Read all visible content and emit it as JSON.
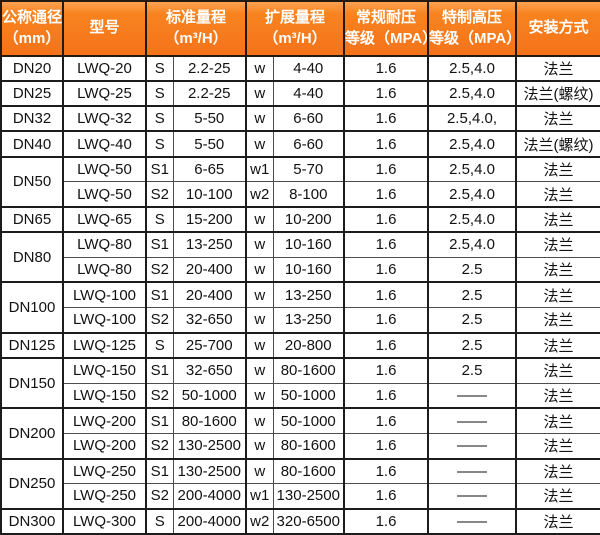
{
  "colors": {
    "header_background": "#F5731A",
    "header_background_top": "#FBA253",
    "header_text": "#FFFFFF",
    "border_thick": "#1C1C1C",
    "border_thin": "#4D4D4D",
    "body_text": "#121212",
    "body_background": "#FFFFFF"
  },
  "table": {
    "header": {
      "diameter_l1": "公称通径",
      "diameter_l2": "（mm）",
      "model": "型号",
      "standard_l1": "标准量程",
      "standard_l2": "（m³/H）",
      "extended_l1": "扩展量程",
      "extended_l2": "（m³/H）",
      "normal_pressure_l1": "常规耐压",
      "normal_pressure_l2": "等级（MPA）",
      "high_pressure_l1": "特制高压",
      "high_pressure_l2": "等级（MPA）",
      "installation": "安装方式"
    },
    "rows": [
      {
        "group_start": true,
        "rowspan": 1,
        "dn": "DN20",
        "model": "LWQ-20",
        "s": "S",
        "std": "2.2-25",
        "w": "w",
        "ext": "4-40",
        "normal": "1.6",
        "high": "2.5,4.0",
        "install": "法兰"
      },
      {
        "group_start": true,
        "rowspan": 1,
        "dn": "DN25",
        "model": "LWQ-25",
        "s": "S",
        "std": "2.2-25",
        "w": "w",
        "ext": "4-40",
        "normal": "1.6",
        "high": "2.5,4.0",
        "install": "法兰(螺纹)"
      },
      {
        "group_start": true,
        "rowspan": 1,
        "dn": "DN32",
        "model": "LWQ-32",
        "s": "S",
        "std": "5-50",
        "w": "w",
        "ext": "6-60",
        "normal": "1.6",
        "high": "2.5,4.0,",
        "install": "法兰"
      },
      {
        "group_start": true,
        "rowspan": 1,
        "dn": "DN40",
        "model": "LWQ-40",
        "s": "S",
        "std": "5-50",
        "w": "w",
        "ext": "6-60",
        "normal": "1.6",
        "high": "2.5,4.0",
        "install": "法兰(螺纹)"
      },
      {
        "group_start": true,
        "rowspan": 2,
        "dn": "DN50",
        "model": "LWQ-50",
        "s": "S1",
        "std": "6-65",
        "w": "w1",
        "ext": "5-70",
        "normal": "1.6",
        "high": "2.5,4.0",
        "install": "法兰"
      },
      {
        "group_start": false,
        "rowspan": 0,
        "dn": "",
        "model": "LWQ-50",
        "s": "S2",
        "std": "10-100",
        "w": "w2",
        "ext": "8-100",
        "normal": "1.6",
        "high": "2.5,4.0",
        "install": "法兰"
      },
      {
        "group_start": true,
        "rowspan": 1,
        "dn": "DN65",
        "model": "LWQ-65",
        "s": "S",
        "std": "15-200",
        "w": "w",
        "ext": "10-200",
        "normal": "1.6",
        "high": "2.5,4.0",
        "install": "法兰"
      },
      {
        "group_start": true,
        "rowspan": 2,
        "dn": "DN80",
        "model": "LWQ-80",
        "s": "S1",
        "std": "13-250",
        "w": "w",
        "ext": "10-160",
        "normal": "1.6",
        "high": "2.5,4.0",
        "install": "法兰"
      },
      {
        "group_start": false,
        "rowspan": 0,
        "dn": "",
        "model": "LWQ-80",
        "s": "S2",
        "std": "20-400",
        "w": "w",
        "ext": "10-160",
        "normal": "1.6",
        "high": "2.5",
        "install": "法兰"
      },
      {
        "group_start": true,
        "rowspan": 2,
        "dn": "DN100",
        "model": "LWQ-100",
        "s": "S1",
        "std": "20-400",
        "w": "w",
        "ext": "13-250",
        "normal": "1.6",
        "high": "2.5",
        "install": "法兰"
      },
      {
        "group_start": false,
        "rowspan": 0,
        "dn": "",
        "model": "LWQ-100",
        "s": "S2",
        "std": "32-650",
        "w": "w",
        "ext": "13-250",
        "normal": "1.6",
        "high": "2.5",
        "install": "法兰"
      },
      {
        "group_start": true,
        "rowspan": 1,
        "dn": "DN125",
        "model": "LWQ-125",
        "s": "S",
        "std": "25-700",
        "w": "w",
        "ext": "20-800",
        "normal": "1.6",
        "high": "2.5",
        "install": "法兰"
      },
      {
        "group_start": true,
        "rowspan": 2,
        "dn": "DN150",
        "model": "LWQ-150",
        "s": "S1",
        "std": "32-650",
        "w": "w",
        "ext": "80-1600",
        "normal": "1.6",
        "high": "2.5",
        "install": "法兰"
      },
      {
        "group_start": false,
        "rowspan": 0,
        "dn": "",
        "model": "LWQ-150",
        "s": "S2",
        "std": "50-1000",
        "w": "w",
        "ext": "50-1000",
        "normal": "1.6",
        "high": "——",
        "install": "法兰"
      },
      {
        "group_start": true,
        "rowspan": 2,
        "dn": "DN200",
        "model": "LWQ-200",
        "s": "S1",
        "std": "80-1600",
        "w": "w",
        "ext": "50-1000",
        "normal": "1.6",
        "high": "——",
        "install": "法兰"
      },
      {
        "group_start": false,
        "rowspan": 0,
        "dn": "",
        "model": "LWQ-200",
        "s": "S2",
        "std": "130-2500",
        "w": "w",
        "ext": "80-1600",
        "normal": "1.6",
        "high": "——",
        "install": "法兰"
      },
      {
        "group_start": true,
        "rowspan": 2,
        "dn": "DN250",
        "model": "LWQ-250",
        "s": "S1",
        "std": "130-2500",
        "w": "w",
        "ext": "80-1600",
        "normal": "1.6",
        "high": "——",
        "install": "法兰"
      },
      {
        "group_start": false,
        "rowspan": 0,
        "dn": "",
        "model": "LWQ-250",
        "s": "S2",
        "std": "200-4000",
        "w": "w1",
        "ext": "130-2500",
        "normal": "1.6",
        "high": "——",
        "install": "法兰"
      },
      {
        "group_start": true,
        "rowspan": 1,
        "dn": "DN300",
        "model": "LWQ-300",
        "s": "S",
        "std": "200-4000",
        "w": "w2",
        "ext": "320-6500",
        "normal": "1.6",
        "high": "——",
        "install": "法兰"
      }
    ]
  }
}
